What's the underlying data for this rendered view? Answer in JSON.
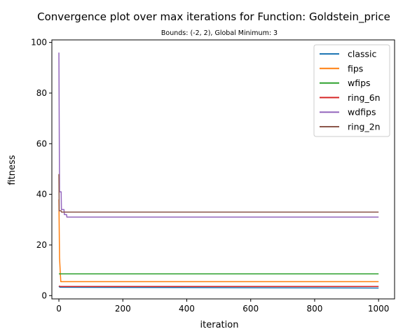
{
  "chart_data": {
    "type": "line",
    "title": "Convergence plot over max iterations for Function: Goldstein_price",
    "subtitle": "Bounds: (-2, 2), Global Minimum: 3",
    "xlabel": "iteration",
    "ylabel": "fitness",
    "xlim": [
      -22,
      1050
    ],
    "ylim": [
      -1.3,
      101
    ],
    "xticks": [
      0,
      200,
      400,
      600,
      800,
      1000
    ],
    "yticks": [
      0,
      20,
      40,
      60,
      80,
      100
    ],
    "legend_position": "top-right",
    "series": [
      {
        "name": "classic",
        "color": "#1f77b4",
        "points": [
          [
            0,
            3.7
          ],
          [
            3,
            3.3
          ],
          [
            1000,
            3.0
          ]
        ]
      },
      {
        "name": "fips",
        "color": "#ff7f0e",
        "points": [
          [
            0,
            38
          ],
          [
            2,
            15
          ],
          [
            4,
            10
          ],
          [
            6,
            5.5
          ],
          [
            1000,
            5.5
          ]
        ]
      },
      {
        "name": "wfips",
        "color": "#2ca02c",
        "points": [
          [
            0,
            8.6
          ],
          [
            1000,
            8.6
          ]
        ]
      },
      {
        "name": "ring_6n",
        "color": "#d62728",
        "points": [
          [
            0,
            3.8
          ],
          [
            5,
            3.6
          ],
          [
            1000,
            3.6
          ]
        ]
      },
      {
        "name": "wdfips",
        "color": "#9467bd",
        "points": [
          [
            0,
            96
          ],
          [
            2,
            41
          ],
          [
            7,
            41
          ],
          [
            8,
            34
          ],
          [
            16,
            34
          ],
          [
            17,
            32
          ],
          [
            24,
            32
          ],
          [
            25,
            31
          ],
          [
            1000,
            31
          ]
        ]
      },
      {
        "name": "ring_2n",
        "color": "#8c564b",
        "points": [
          [
            0,
            48
          ],
          [
            1,
            33.5
          ],
          [
            7,
            33.5
          ],
          [
            8,
            33
          ],
          [
            1000,
            33
          ]
        ]
      }
    ]
  }
}
